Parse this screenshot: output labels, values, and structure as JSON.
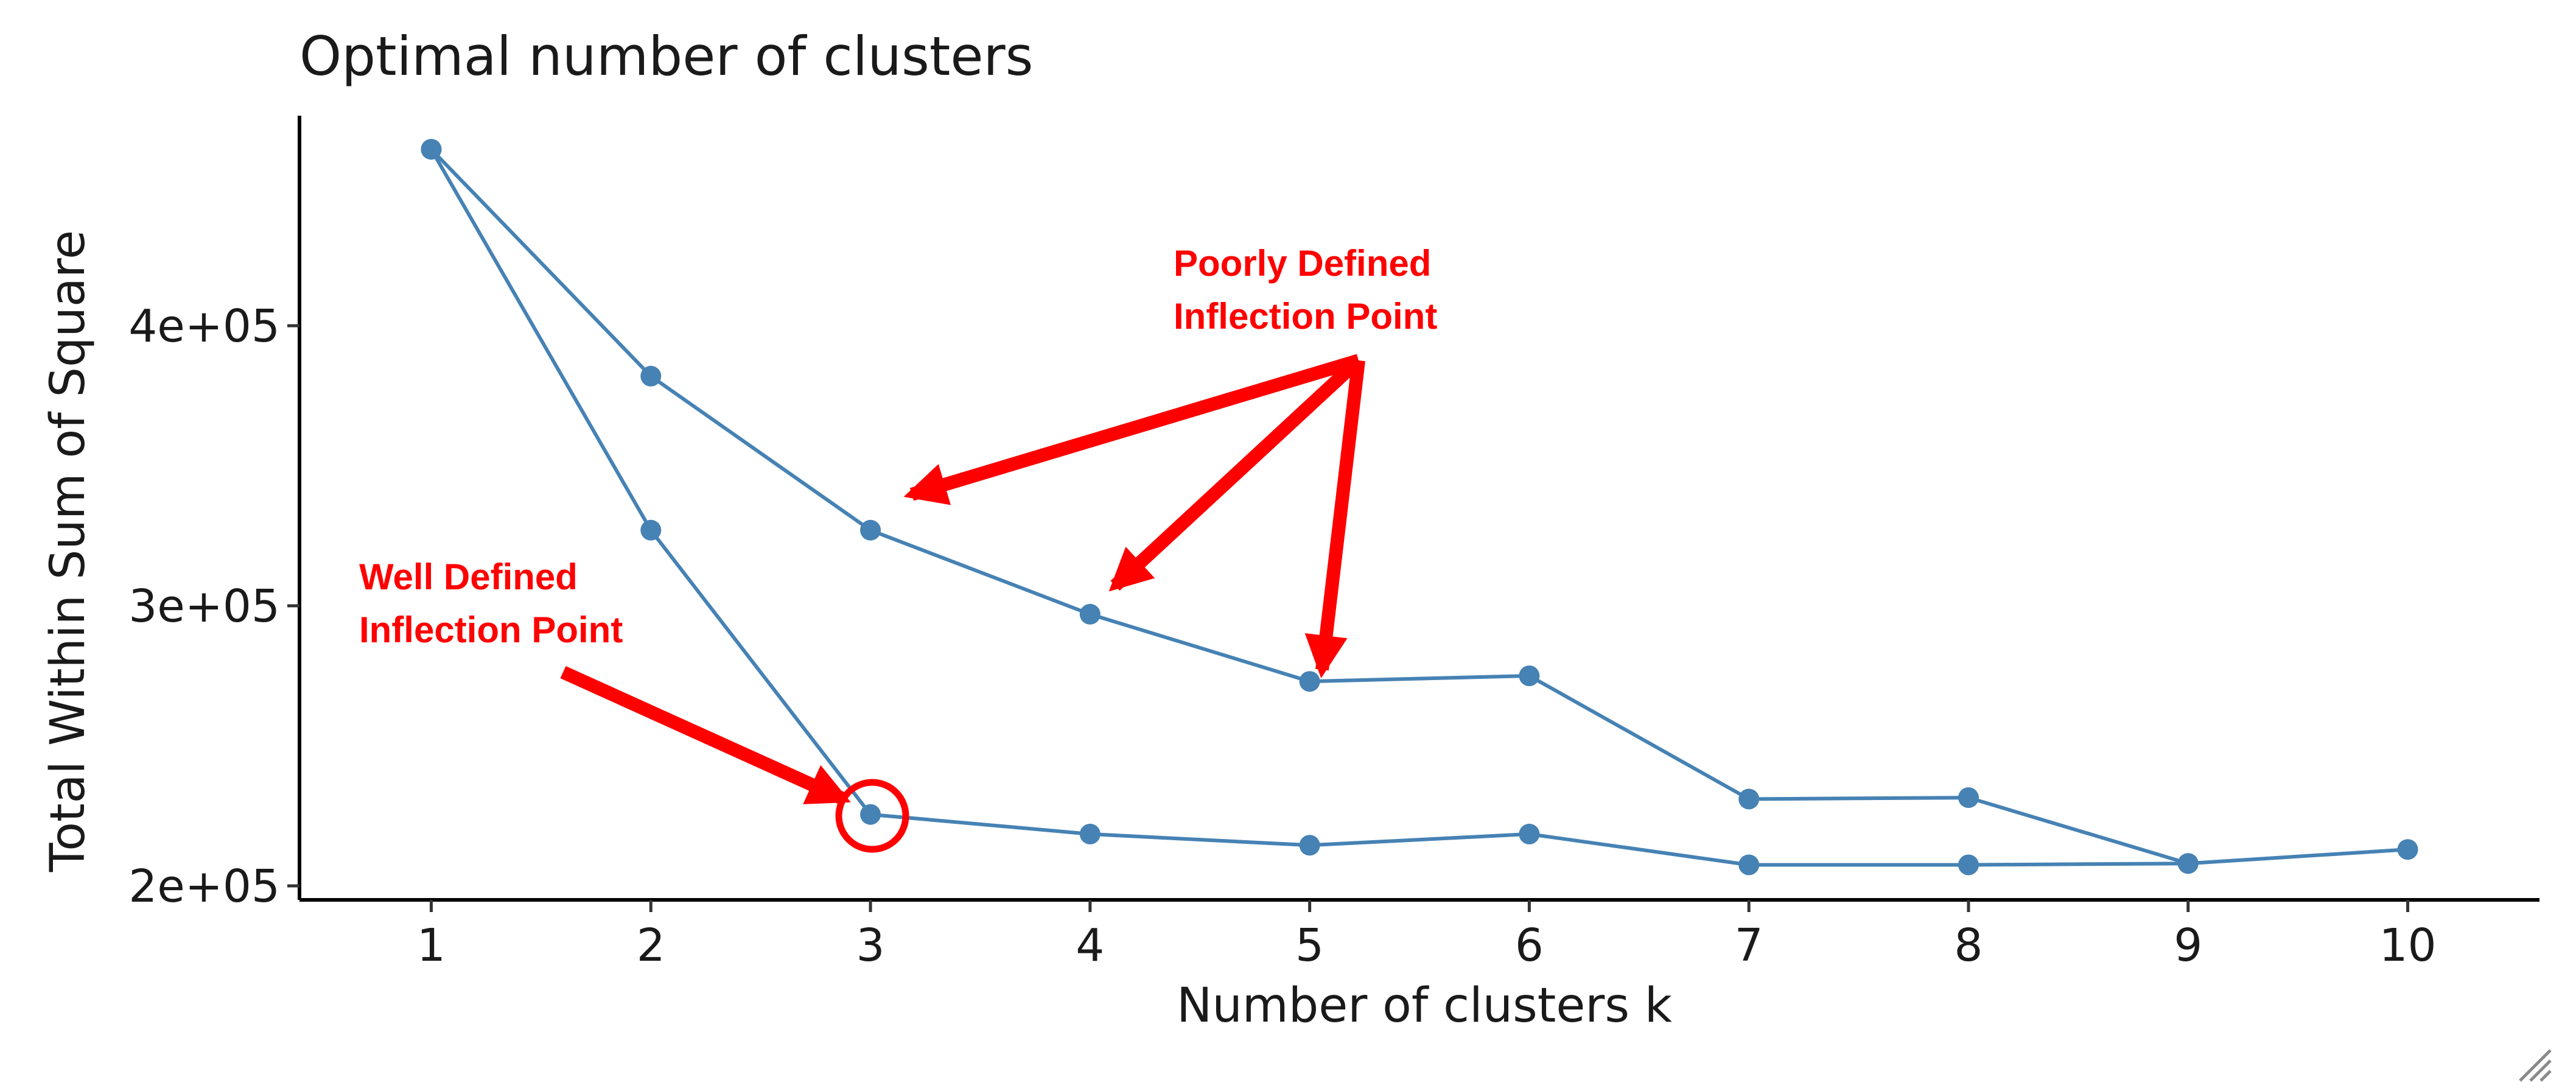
{
  "chart_data": {
    "type": "line",
    "title": "Optimal number of clusters",
    "xlabel": "Number of clusters k",
    "ylabel": "Total Within Sum of Square",
    "x": [
      1,
      2,
      3,
      4,
      5,
      6,
      7,
      8,
      9,
      10
    ],
    "xlim": [
      0.4,
      10.6
    ],
    "ylim": [
      195000,
      475000
    ],
    "yticks": [
      200000,
      300000,
      400000
    ],
    "ytick_labels": [
      "2e+05",
      "3e+05",
      "4e+05"
    ],
    "xtick_labels": [
      "1",
      "2",
      "3",
      "4",
      "5",
      "6",
      "7",
      "8",
      "9",
      "10"
    ],
    "grid": false,
    "legend": false,
    "series": [
      {
        "values": [
          463000,
          382000,
          327000,
          297000,
          273000,
          275000,
          231000,
          231500,
          208000,
          213000
        ],
        "color": "#4682b4"
      },
      {
        "values": [
          463000,
          327000,
          225500,
          218500,
          214500,
          218500,
          207500,
          207500,
          208000,
          null
        ],
        "color": "#4682b4"
      }
    ],
    "annotations": {
      "well_defined": {
        "line1": "Well Defined",
        "line2": "Inflection Point",
        "target_k": 3
      },
      "poorly_defined": {
        "line1": "Poorly Defined",
        "line2": "Inflection Point",
        "target_k": [
          3,
          4,
          5
        ]
      },
      "color": "#ff0000"
    }
  }
}
